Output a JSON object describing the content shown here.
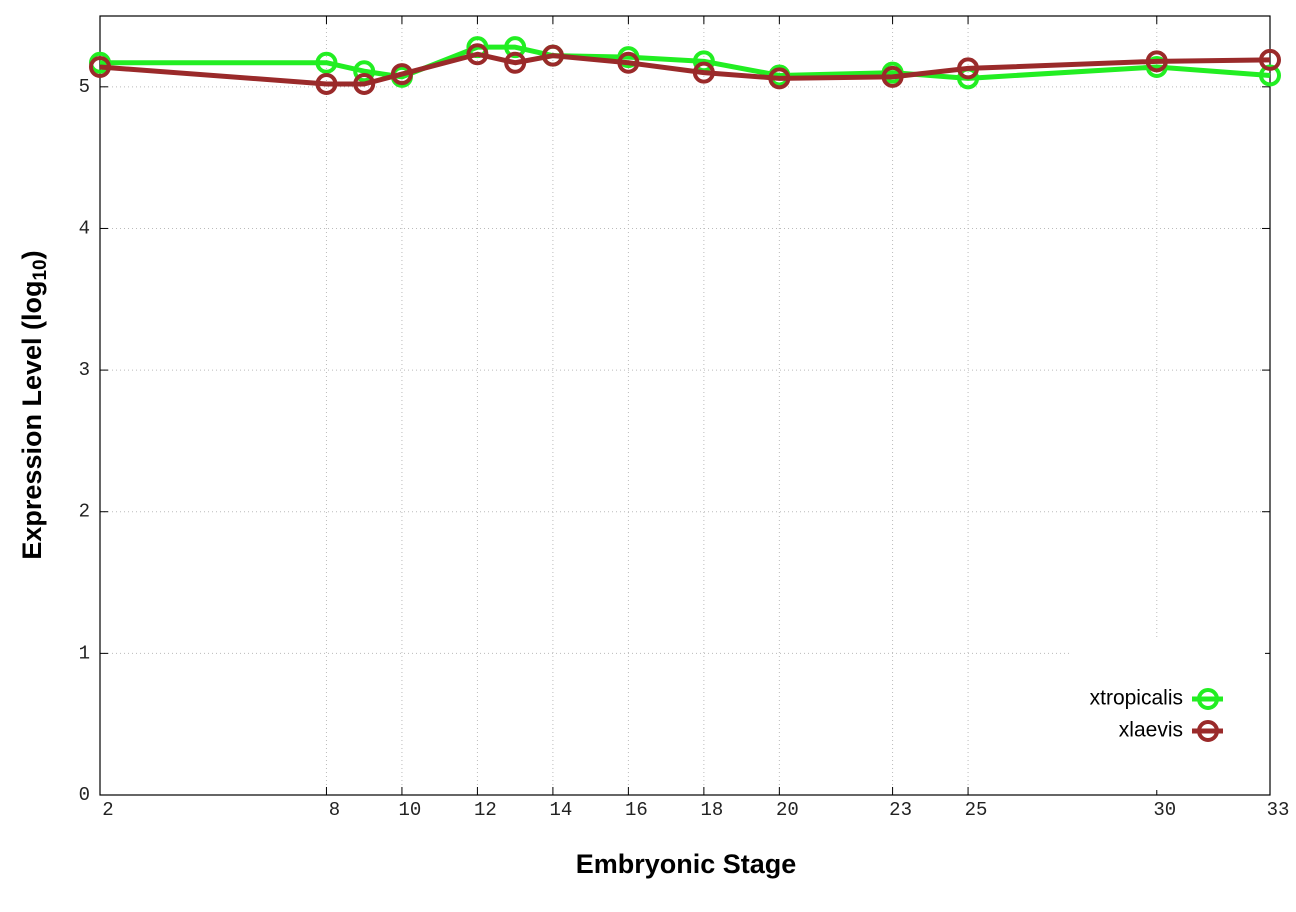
{
  "chart_data": {
    "type": "line",
    "xlabel": "Embryonic Stage",
    "ylabel": "Expression Level (log",
    "ylabel_sub": "10",
    "ylabel_end": ")",
    "x": [
      2,
      8,
      9,
      10,
      12,
      13,
      14,
      16,
      18,
      20,
      23,
      25,
      30,
      33
    ],
    "series": [
      {
        "name": "xtropicalis",
        "color": "#22ee22",
        "values": [
          5.17,
          5.17,
          5.11,
          5.07,
          5.28,
          5.28,
          5.22,
          5.21,
          5.18,
          5.08,
          5.1,
          5.06,
          5.14,
          5.08
        ]
      },
      {
        "name": "xlaevis",
        "color": "#9a2a2a",
        "values": [
          5.14,
          5.02,
          5.02,
          5.09,
          5.23,
          5.17,
          5.22,
          5.17,
          5.1,
          5.06,
          5.07,
          5.13,
          5.18,
          5.19
        ]
      }
    ],
    "xlim": [
      2,
      33
    ],
    "xticks": [
      2,
      8,
      10,
      12,
      14,
      16,
      18,
      20,
      23,
      25,
      30,
      33
    ],
    "ylim": [
      0,
      5.5
    ],
    "yticks": [
      0,
      1,
      2,
      3,
      4,
      5
    ],
    "grid": true,
    "legend": "bottom right"
  }
}
